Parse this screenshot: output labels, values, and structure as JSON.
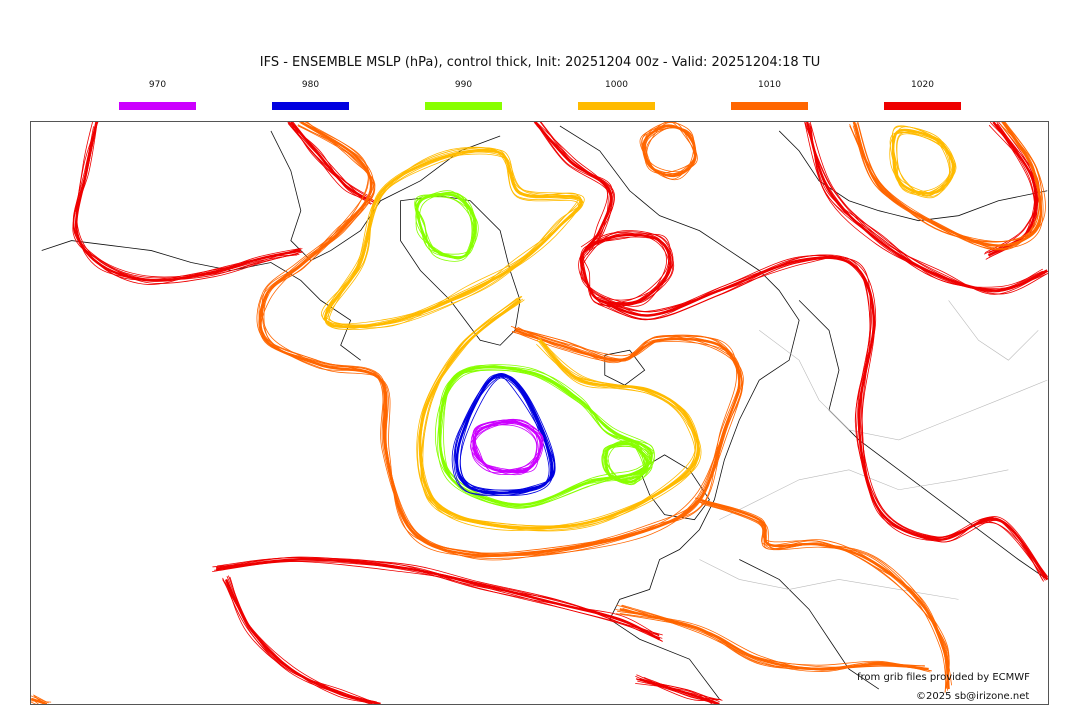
{
  "title": "IFS - ENSEMBLE MSLP (hPa), control thick, Init: 20251204 00z - Valid: 20251204:18 TU",
  "legend": [
    {
      "label": "970",
      "color": "#cc00ff"
    },
    {
      "label": "980",
      "color": "#0000e0"
    },
    {
      "label": "990",
      "color": "#88ff00"
    },
    {
      "label": "1000",
      "color": "#ffbb00"
    },
    {
      "label": "1010",
      "color": "#ff6600"
    },
    {
      "label": "1020",
      "color": "#ee0000"
    }
  ],
  "credits": {
    "source": "from grib files provided by ECMWF",
    "copyright": "©2025 sb@irizone.net"
  }
}
